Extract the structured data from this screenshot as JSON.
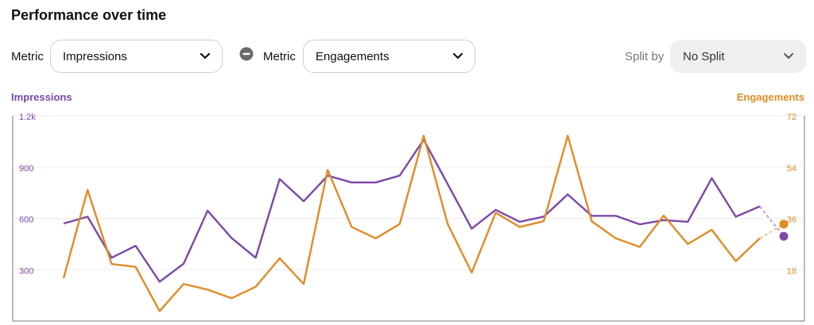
{
  "header": {
    "title": "Performance over time"
  },
  "controls": {
    "metric1_label": "Metric",
    "metric1_value": "Impressions",
    "metric2_label": "Metric",
    "metric2_value": "Engagements",
    "split_label": "Split by",
    "split_value": "No Split"
  },
  "icons": {
    "remove": "minus-circle-icon",
    "dropdown": "chevron-down-icon"
  },
  "colors": {
    "impressions": "#7b48a8",
    "engagements": "#e08b26"
  },
  "chart_data": {
    "type": "line",
    "left_axis_title": "Impressions",
    "right_axis_title": "Engagements",
    "left_ticks": [
      {
        "value": 300,
        "label": "300"
      },
      {
        "value": 600,
        "label": "600"
      },
      {
        "value": 900,
        "label": "900"
      },
      {
        "value": 1200,
        "label": "1.2k"
      }
    ],
    "right_ticks": [
      {
        "value": 18,
        "label": "18"
      },
      {
        "value": 36,
        "label": "36"
      },
      {
        "value": 54,
        "label": "54"
      },
      {
        "value": 72,
        "label": "72"
      }
    ],
    "left_ylim": [
      0,
      1200
    ],
    "right_ylim": [
      0,
      72
    ],
    "grid": true,
    "series": [
      {
        "name": "Impressions",
        "axis": "left",
        "values": [
          570,
          610,
          370,
          440,
          230,
          335,
          645,
          485,
          370,
          830,
          700,
          850,
          810,
          810,
          850,
          1060,
          800,
          540,
          650,
          580,
          610,
          740,
          615,
          615,
          565,
          590,
          580,
          835,
          610,
          670,
          495
        ]
      },
      {
        "name": "Engagements",
        "axis": "right",
        "values": [
          15,
          46,
          20,
          19,
          3.5,
          13,
          11,
          8,
          12,
          22,
          13,
          53,
          33,
          29,
          34,
          65,
          34,
          17,
          38,
          33,
          35,
          65,
          35,
          29,
          26,
          37,
          27,
          32,
          21,
          29,
          34
        ]
      }
    ]
  }
}
